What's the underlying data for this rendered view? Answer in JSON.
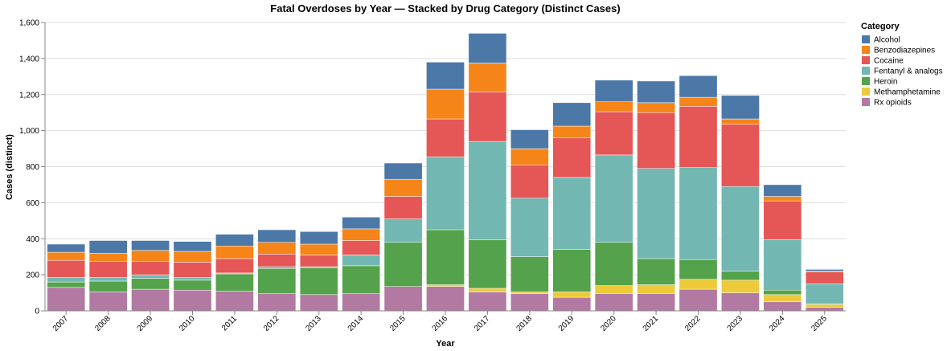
{
  "chart_data": {
    "type": "bar",
    "stacked": true,
    "title": "Fatal Overdoses by Year — Stacked by Drug Category (Distinct Cases)",
    "xlabel": "Year",
    "ylabel": "Cases (distinct)",
    "ylim": [
      0,
      1600
    ],
    "yticks": [
      0,
      200,
      400,
      600,
      800,
      1000,
      1200,
      1400,
      1600
    ],
    "ytick_labels": [
      "0",
      "200",
      "400",
      "600",
      "800",
      "1,000",
      "1,200",
      "1,400",
      "1,600"
    ],
    "grid": true,
    "legend": {
      "title": "Category",
      "position": "top-right"
    },
    "categories": [
      "2007",
      "2008",
      "2009",
      "2010",
      "2011",
      "2012",
      "2013",
      "2014",
      "2015",
      "2016",
      "2017",
      "2018",
      "2019",
      "2020",
      "2021",
      "2022",
      "2023",
      "2024",
      "2025"
    ],
    "series": [
      {
        "name": "Rx opioids",
        "color": "#b279a2",
        "values": [
          130,
          105,
          120,
          115,
          110,
          95,
          90,
          95,
          135,
          135,
          105,
          95,
          75,
          95,
          95,
          120,
          100,
          50,
          20
        ]
      },
      {
        "name": "Methamphetamine",
        "color": "#eeca3b",
        "values": [
          0,
          0,
          0,
          0,
          0,
          0,
          0,
          0,
          0,
          10,
          20,
          10,
          30,
          45,
          50,
          55,
          70,
          40,
          15
        ]
      },
      {
        "name": "Heroin",
        "color": "#54a24b",
        "values": [
          30,
          60,
          60,
          55,
          95,
          140,
          150,
          155,
          245,
          305,
          270,
          195,
          235,
          240,
          145,
          110,
          50,
          25,
          5
        ]
      },
      {
        "name": "Fentanyl & analogs",
        "color": "#72b7b2",
        "values": [
          25,
          20,
          20,
          15,
          5,
          10,
          5,
          60,
          130,
          405,
          545,
          325,
          400,
          485,
          500,
          510,
          470,
          280,
          110
        ]
      },
      {
        "name": "Cocaine",
        "color": "#e45756",
        "values": [
          95,
          90,
          75,
          85,
          80,
          70,
          65,
          80,
          125,
          210,
          275,
          185,
          220,
          240,
          310,
          340,
          345,
          215,
          65
        ]
      },
      {
        "name": "Benzodiazepines",
        "color": "#f58518",
        "values": [
          45,
          45,
          60,
          60,
          70,
          65,
          60,
          65,
          95,
          165,
          160,
          90,
          65,
          55,
          55,
          50,
          30,
          25,
          5
        ]
      },
      {
        "name": "Alcohol",
        "color": "#4c78a8",
        "values": [
          45,
          70,
          55,
          55,
          65,
          70,
          70,
          65,
          90,
          150,
          165,
          105,
          130,
          120,
          120,
          120,
          130,
          65,
          10
        ]
      }
    ],
    "legend_order": [
      "Alcohol",
      "Benzodiazepines",
      "Cocaine",
      "Fentanyl & analogs",
      "Heroin",
      "Methamphetamine",
      "Rx opioids"
    ]
  }
}
